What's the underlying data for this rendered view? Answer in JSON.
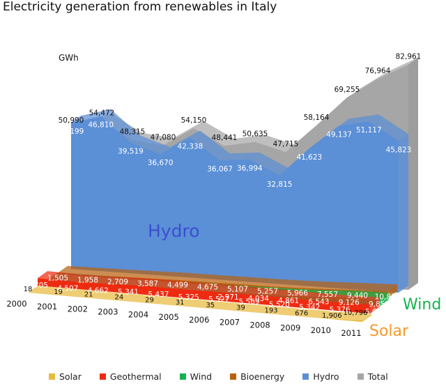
{
  "title": "Electricity generation from renewables in Italy",
  "unit": "GWh",
  "colors": {
    "total": "#a6a6a6",
    "total_side": "#8c8c8c",
    "hydro": "#5b8fd6",
    "hydro_label": "#3b4fd0",
    "bioenergy": "#b8610f",
    "wind": "#14b24e",
    "geothermal": "#ee2a10",
    "solar": "#e8ba3e",
    "solar_label": "#f39a2b"
  },
  "chart_data": {
    "type": "area",
    "title": "Electricity generation from renewables in Italy",
    "ylabel": "GWh",
    "categories": [
      "2000",
      "2001",
      "2002",
      "2003",
      "2004",
      "2005",
      "2006",
      "2007",
      "2008",
      "2009",
      "2010",
      "2011"
    ],
    "series": [
      {
        "name": "Total",
        "values": [
          50990,
          54472,
          48315,
          47080,
          54150,
          48441,
          50635,
          47715,
          58164,
          69255,
          76964,
          82961
        ],
        "labels": [
          "50,990",
          "54,472",
          "48,315",
          "47,080",
          "54,150",
          "48,441",
          "50,635",
          "47,715",
          "58,164",
          "69,255",
          "76,964",
          "82,961"
        ]
      },
      {
        "name": "Hydro",
        "values": [
          44199,
          46810,
          39519,
          36670,
          42338,
          36067,
          36994,
          32815,
          41623,
          49137,
          51117,
          45823
        ],
        "labels": [
          "44,199",
          "46,810",
          "39,519",
          "36,670",
          "42,338",
          "36,067",
          "36,994",
          "32,815",
          "41,623",
          "49,137",
          "51,117",
          "45,823"
        ]
      },
      {
        "name": "Bioenergy",
        "values": [
          1505,
          1958,
          2709,
          3587,
          4499,
          4675,
          5107,
          5257,
          5966,
          7557,
          9440,
          10832
        ],
        "labels": [
          "1,505",
          "1,958",
          "2,709",
          "3,587",
          "4,499",
          "4,675",
          "5,107",
          "5,257",
          "5,966",
          "7,557",
          "9,440",
          "10,832"
        ]
      },
      {
        "name": "Wind",
        "values": [
          563,
          1179,
          1404,
          1458,
          1847,
          2344,
          2971,
          4034,
          4861,
          6543,
          9126,
          9856
        ],
        "labels": [
          "",
          "",
          "",
          "",
          "",
          "",
          "2,971",
          "4,034",
          "4,861",
          "6,543",
          "9,126",
          "9,856"
        ]
      },
      {
        "name": "Geothermal",
        "values": [
          4705,
          4507,
          4662,
          5341,
          5437,
          5325,
          5527,
          5569,
          5520,
          5342,
          5376,
          5654
        ],
        "labels": [
          "4,705",
          "4,507",
          "4,662",
          "5,341",
          "5,437",
          "5,325",
          "5,527",
          "5,569",
          "5,520",
          "5,342",
          "5,376",
          "5,654"
        ]
      },
      {
        "name": "Solar",
        "values": [
          18,
          19,
          21,
          24,
          29,
          31,
          35,
          39,
          193,
          676,
          1906,
          10796
        ],
        "labels": [
          "18",
          "19",
          "21",
          "24",
          "29",
          "31",
          "35",
          "39",
          "193",
          "676",
          "1,906",
          "10,796"
        ]
      }
    ],
    "series_labels": {
      "hydro": "Hydro",
      "wind": "Wind",
      "solar": "Solar"
    },
    "legend": [
      "Solar",
      "Geothermal",
      "Wind",
      "Bioenergy",
      "Hydro",
      "Total"
    ],
    "legend_position": "bottom",
    "grid": false
  }
}
